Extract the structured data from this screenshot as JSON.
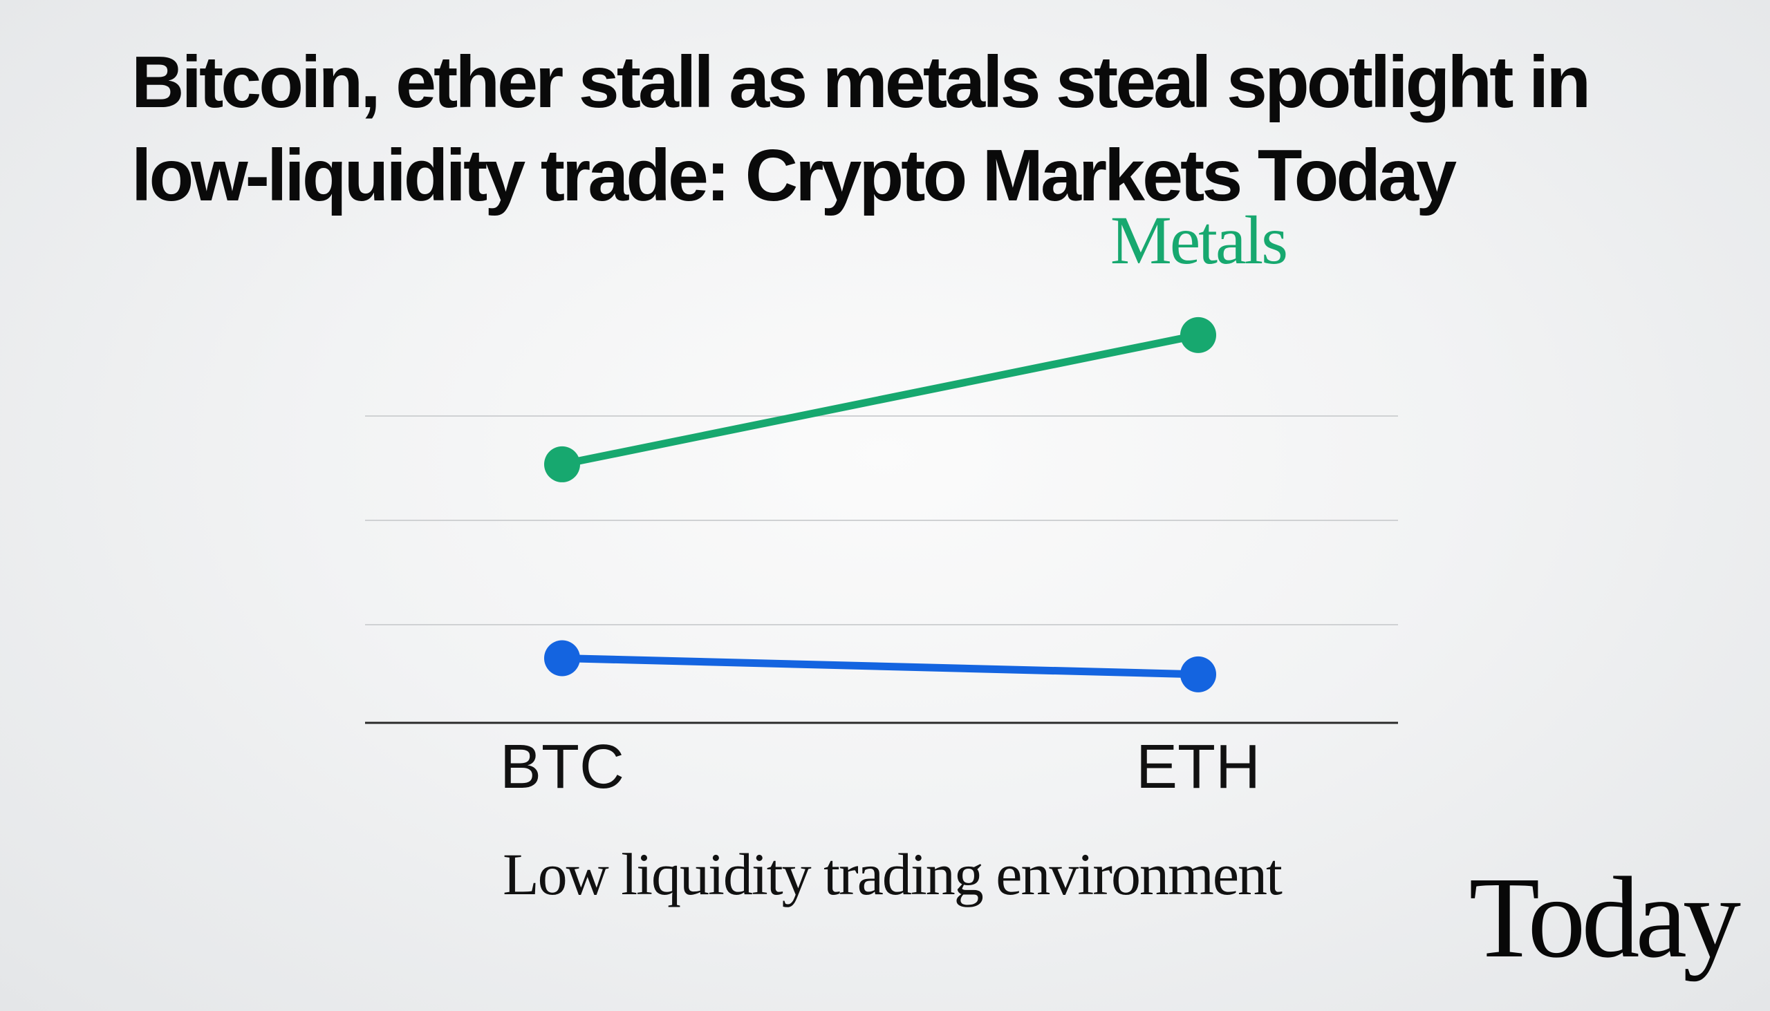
{
  "headline": {
    "line1": "Bitcoin, ether stall as metals steal spotlight in",
    "line2": "low-liquidity trade: Crypto Markets Today"
  },
  "caption": "Low liquidity trading environment",
  "brand": "Today",
  "chart_data": {
    "type": "line",
    "categories": [
      "BTC",
      "ETH"
    ],
    "ylim": [
      0,
      100
    ],
    "grid": true,
    "series": [
      {
        "name": "Metals",
        "values": [
          56,
          84
        ],
        "color": "#17a86f"
      },
      {
        "name": "",
        "values": [
          14,
          10.5
        ],
        "color": "#1464e0"
      }
    ]
  }
}
